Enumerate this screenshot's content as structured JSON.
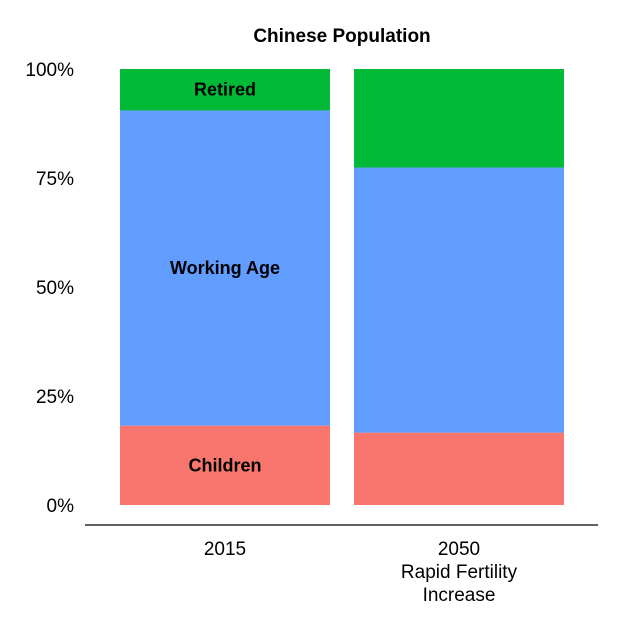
{
  "chart_data": {
    "type": "bar",
    "stacked": true,
    "title": "Chinese Population",
    "xlabel": "",
    "ylabel": "",
    "ylim": [
      0,
      100
    ],
    "y_ticks": [
      "0%",
      "25%",
      "50%",
      "75%",
      "100%"
    ],
    "y_tick_values": [
      0,
      25,
      50,
      75,
      100
    ],
    "grid": false,
    "categories": [
      [
        "2015"
      ],
      [
        "2050",
        "Rapid Fertility",
        "Increase"
      ]
    ],
    "series": [
      {
        "key": "children",
        "color": "#f8766d",
        "values": [
          18.2,
          16.6
        ],
        "labels": [
          "Children",
          ""
        ]
      },
      {
        "key": "working",
        "color": "#619cff",
        "values": [
          72.3,
          60.8
        ],
        "labels": [
          "Working Age",
          ""
        ]
      },
      {
        "key": "retired",
        "color": "#00ba38",
        "values": [
          9.5,
          22.6
        ],
        "labels": [
          "Retired",
          ""
        ]
      }
    ]
  }
}
